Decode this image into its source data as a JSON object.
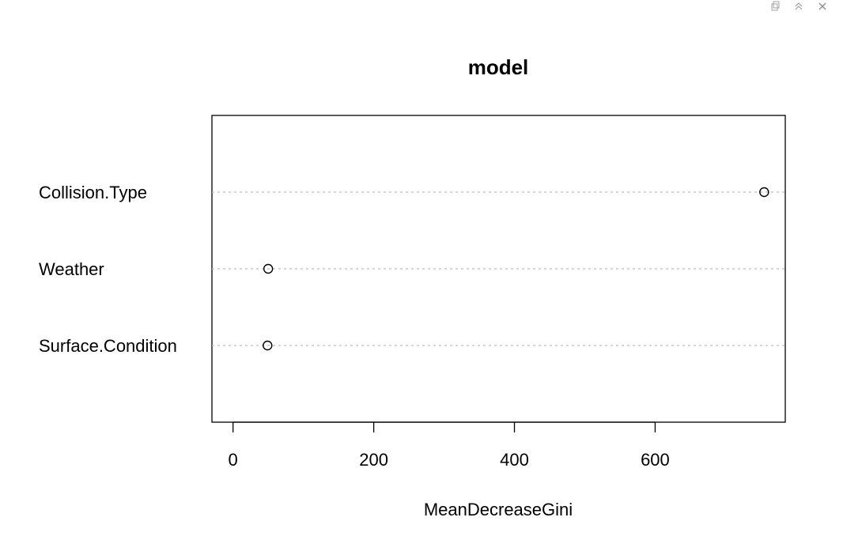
{
  "toolbar": {
    "icons": [
      "popout-icon",
      "collapse-icon",
      "close-icon"
    ]
  },
  "chart_data": {
    "type": "scatter",
    "subtype": "dotchart",
    "title": "model",
    "xlabel": "MeanDecreaseGini",
    "ylabel": "",
    "categories": [
      "Collision.Type",
      "Weather",
      "Surface.Condition"
    ],
    "values": [
      755,
      50,
      49
    ],
    "xlim": [
      -30,
      785
    ],
    "xticks": [
      0,
      200,
      400,
      600
    ],
    "grid": "dotted horizontal lines",
    "marker": "open circle"
  }
}
